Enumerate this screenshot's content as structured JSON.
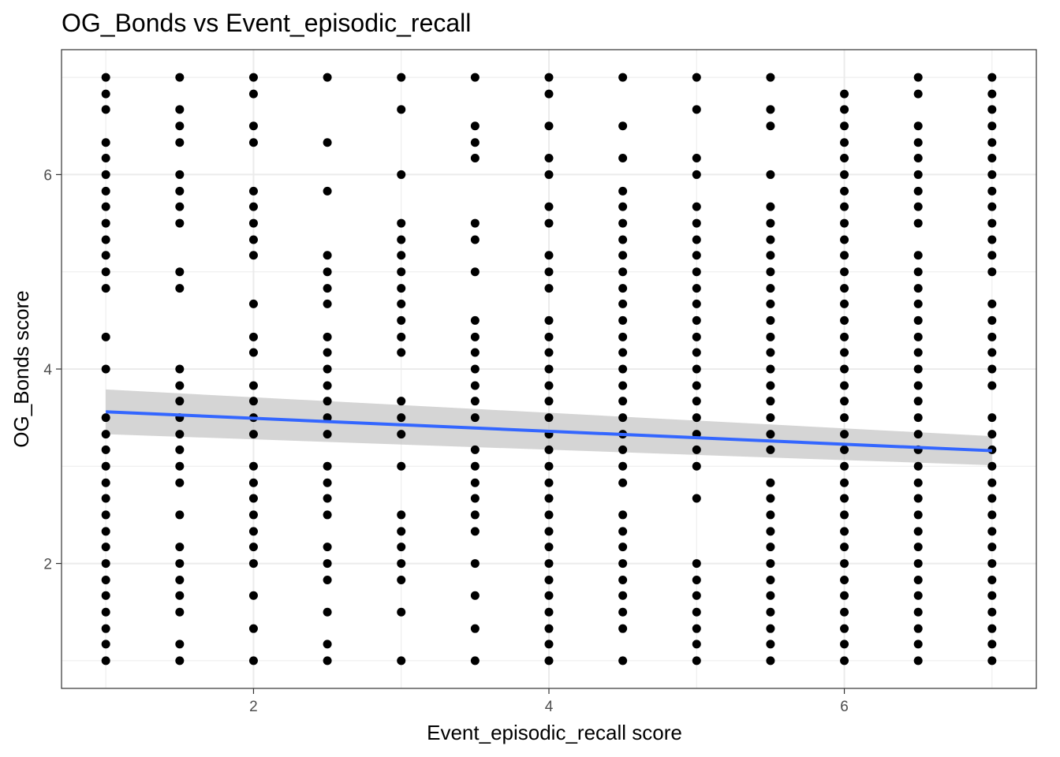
{
  "chart_data": {
    "type": "scatter",
    "title": "OG_Bonds vs Event_episodic_recall",
    "xlabel": "Event_episodic_recall score",
    "ylabel": "OG_Bonds score",
    "xlim": [
      0.7,
      7.3
    ],
    "ylim": [
      0.715,
      7.285
    ],
    "x_ticks": [
      2,
      4,
      6
    ],
    "y_ticks": [
      2,
      4,
      6
    ],
    "grid": true,
    "point_color": "#000000",
    "trend_color": "#3366FF",
    "band_color": "#BEBEBE",
    "columns": [
      {
        "x": 1.0,
        "y": [
          7.0,
          6.83,
          6.67,
          6.33,
          6.17,
          6.0,
          5.83,
          5.67,
          5.5,
          5.33,
          5.17,
          5.0,
          4.83,
          4.33,
          4.0,
          3.5,
          3.33,
          3.17,
          3.0,
          2.83,
          2.67,
          2.5,
          2.33,
          2.17,
          2.0,
          1.83,
          1.67,
          1.5,
          1.33,
          1.17,
          1.0
        ]
      },
      {
        "x": 1.5,
        "y": [
          7.0,
          6.67,
          6.5,
          6.33,
          6.0,
          5.83,
          5.67,
          5.5,
          5.0,
          4.83,
          4.0,
          3.83,
          3.67,
          3.5,
          3.33,
          3.17,
          3.0,
          2.83,
          2.5,
          2.17,
          2.0,
          1.83,
          1.67,
          1.5,
          1.17,
          1.0
        ]
      },
      {
        "x": 2.0,
        "y": [
          7.0,
          6.83,
          6.5,
          6.33,
          5.83,
          5.67,
          5.5,
          5.33,
          5.17,
          4.67,
          4.33,
          4.17,
          3.83,
          3.67,
          3.5,
          3.33,
          3.0,
          2.83,
          2.67,
          2.5,
          2.33,
          2.17,
          2.0,
          1.67,
          1.33,
          1.0
        ]
      },
      {
        "x": 2.5,
        "y": [
          7.0,
          6.33,
          5.83,
          5.17,
          5.0,
          4.83,
          4.67,
          4.33,
          4.17,
          4.0,
          3.83,
          3.67,
          3.5,
          3.33,
          3.0,
          2.83,
          2.67,
          2.5,
          2.17,
          2.0,
          1.83,
          1.5,
          1.17,
          1.0
        ]
      },
      {
        "x": 3.0,
        "y": [
          7.0,
          6.67,
          6.0,
          5.5,
          5.33,
          5.17,
          5.0,
          4.83,
          4.67,
          4.5,
          4.33,
          4.17,
          3.67,
          3.5,
          3.33,
          3.0,
          2.5,
          2.33,
          2.17,
          2.0,
          1.83,
          1.5,
          1.0
        ]
      },
      {
        "x": 3.5,
        "y": [
          7.0,
          6.5,
          6.33,
          6.17,
          5.5,
          5.33,
          5.0,
          4.5,
          4.33,
          4.17,
          4.0,
          3.83,
          3.67,
          3.5,
          3.17,
          3.0,
          2.83,
          2.67,
          2.5,
          2.33,
          2.0,
          1.67,
          1.33,
          1.0
        ]
      },
      {
        "x": 4.0,
        "y": [
          7.0,
          6.83,
          6.5,
          6.17,
          6.0,
          5.67,
          5.5,
          5.17,
          5.0,
          4.83,
          4.5,
          4.33,
          4.17,
          4.0,
          3.83,
          3.67,
          3.5,
          3.33,
          3.17,
          3.0,
          2.83,
          2.67,
          2.5,
          2.33,
          2.17,
          2.0,
          1.83,
          1.67,
          1.5,
          1.33,
          1.17,
          1.0
        ]
      },
      {
        "x": 4.5,
        "y": [
          7.0,
          6.5,
          6.17,
          5.83,
          5.67,
          5.5,
          5.33,
          5.17,
          5.0,
          4.83,
          4.67,
          4.5,
          4.33,
          4.17,
          4.0,
          3.83,
          3.67,
          3.5,
          3.33,
          3.17,
          3.0,
          2.83,
          2.5,
          2.33,
          2.17,
          2.0,
          1.83,
          1.67,
          1.5,
          1.33,
          1.0
        ]
      },
      {
        "x": 5.0,
        "y": [
          7.0,
          6.67,
          6.17,
          6.0,
          5.67,
          5.5,
          5.33,
          5.17,
          5.0,
          4.83,
          4.67,
          4.5,
          4.33,
          4.17,
          4.0,
          3.83,
          3.67,
          3.5,
          3.33,
          3.17,
          3.0,
          2.67,
          2.0,
          1.83,
          1.67,
          1.5,
          1.33,
          1.17,
          1.0
        ]
      },
      {
        "x": 5.5,
        "y": [
          7.0,
          6.67,
          6.5,
          6.0,
          5.67,
          5.5,
          5.33,
          5.17,
          5.0,
          4.83,
          4.67,
          4.5,
          4.33,
          4.17,
          4.0,
          3.83,
          3.67,
          3.5,
          3.33,
          3.17,
          2.83,
          2.67,
          2.5,
          2.33,
          2.17,
          2.0,
          1.83,
          1.67,
          1.5,
          1.33,
          1.17,
          1.0
        ]
      },
      {
        "x": 6.0,
        "y": [
          6.83,
          6.67,
          6.5,
          6.33,
          6.17,
          6.0,
          5.83,
          5.67,
          5.5,
          5.33,
          5.17,
          5.0,
          4.83,
          4.67,
          4.5,
          4.33,
          4.17,
          4.0,
          3.83,
          3.67,
          3.5,
          3.33,
          3.17,
          3.0,
          2.83,
          2.67,
          2.5,
          2.33,
          2.17,
          2.0,
          1.83,
          1.67,
          1.5,
          1.33,
          1.17,
          1.0
        ]
      },
      {
        "x": 6.5,
        "y": [
          7.0,
          6.83,
          6.5,
          6.33,
          6.17,
          6.0,
          5.83,
          5.67,
          5.5,
          5.17,
          5.0,
          4.83,
          4.67,
          4.5,
          4.33,
          4.17,
          4.0,
          3.83,
          3.67,
          3.5,
          3.33,
          3.17,
          3.0,
          2.83,
          2.67,
          2.5,
          2.33,
          2.17,
          2.0,
          1.83,
          1.67,
          1.5,
          1.33,
          1.17,
          1.0
        ]
      },
      {
        "x": 7.0,
        "y": [
          7.0,
          6.83,
          6.67,
          6.5,
          6.33,
          6.17,
          6.0,
          5.83,
          5.67,
          5.5,
          5.33,
          5.17,
          5.0,
          4.67,
          4.5,
          4.33,
          4.17,
          4.0,
          3.83,
          3.5,
          3.33,
          3.17,
          3.0,
          2.83,
          2.67,
          2.5,
          2.33,
          2.17,
          2.0,
          1.83,
          1.67,
          1.5,
          1.33,
          1.17,
          1.0
        ]
      }
    ],
    "trend": {
      "x": [
        1.0,
        7.0
      ],
      "y": [
        3.56,
        3.16
      ],
      "lower": [
        3.33,
        3.01
      ],
      "upper": [
        3.79,
        3.31
      ]
    }
  }
}
